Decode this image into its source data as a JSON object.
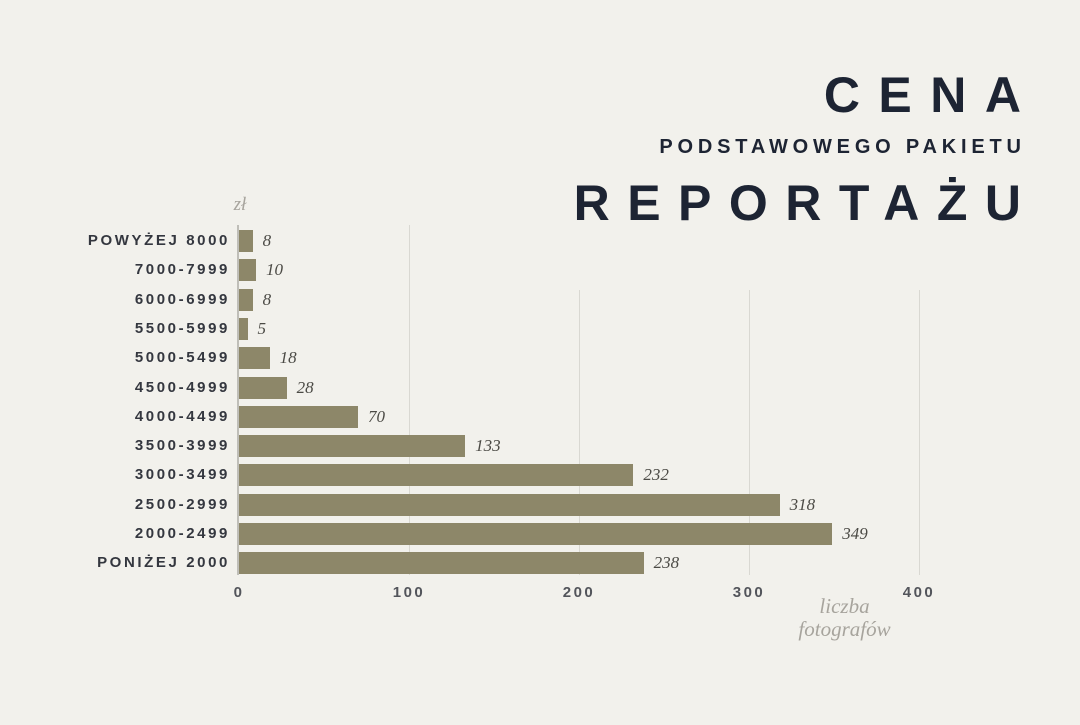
{
  "title": {
    "line1": "CENA",
    "line2": "PODSTAWOWEGO PAKIETU",
    "line3": "REPORTAŻU"
  },
  "chart_data": {
    "type": "bar",
    "orientation": "horizontal",
    "title": "CENA PODSTAWOWEGO PAKIETU REPORTAŻU",
    "categories": [
      "POWYŻEJ 8000",
      "7000-7999",
      "6000-6999",
      "5500-5999",
      "5000-5499",
      "4500-4999",
      "4000-4499",
      "3500-3999",
      "3000-3499",
      "2500-2999",
      "2000-2499",
      "PONIŻEJ 2000"
    ],
    "values": [
      8,
      10,
      8,
      5,
      18,
      28,
      70,
      133,
      232,
      318,
      349,
      238
    ],
    "y_axis_unit": "zł",
    "x_axis_label": "liczba fotografów",
    "x_axis_label_lines": [
      "liczba",
      "fotografów"
    ],
    "xticks": [
      0,
      100,
      200,
      300,
      400
    ],
    "xlim": [
      0,
      420
    ],
    "grid": "vertical",
    "legend": "none"
  },
  "colors": {
    "background": "#F2F1EC",
    "bar": "#8D8769",
    "title": "#1D2433",
    "category_label": "#34373F",
    "value_label": "#4B4A45",
    "tick_label": "#53555B",
    "unit_label": "#A7A49D",
    "gridline": "#D9D8D2",
    "axis_line": "#BFBEB8"
  }
}
